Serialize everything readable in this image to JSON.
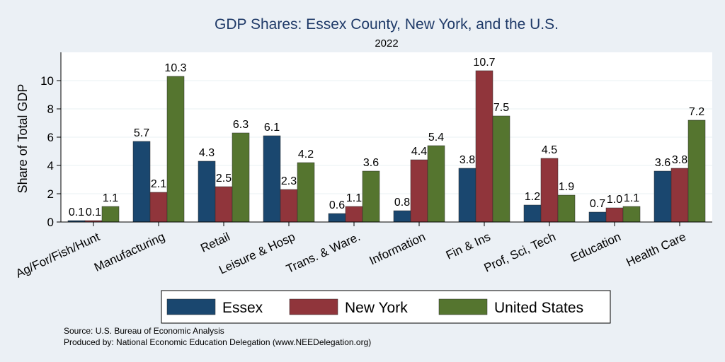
{
  "chart_data": {
    "type": "bar",
    "title": "GDP Shares: Essex County, New York, and the U.S.",
    "subtitle": "2022",
    "ylabel": "Share of Total GDP",
    "xlabel": "",
    "ylim": [
      0,
      12
    ],
    "yticks": [
      0,
      2,
      4,
      6,
      8,
      10
    ],
    "grid": true,
    "legend_position": "bottom",
    "categories": [
      "Ag/For/Fish/Hunt",
      "Manufacturing",
      "Retail",
      "Leisure & Hosp",
      "Trans. & Ware.",
      "Information",
      "Fin & Ins",
      "Prof, Sci, Tech",
      "Education",
      "Health Care"
    ],
    "series": [
      {
        "name": "Essex",
        "color": "#1a476f",
        "values": [
          0.1,
          5.7,
          4.3,
          6.1,
          0.6,
          0.8,
          3.8,
          1.2,
          0.7,
          3.6
        ],
        "labels": [
          "0.1",
          "5.7",
          "4.3",
          "6.1",
          "0.6",
          "0.8",
          "3.8",
          "1.2",
          "0.7",
          "3.6"
        ]
      },
      {
        "name": "New York",
        "color": "#90353b",
        "values": [
          0.1,
          2.1,
          2.5,
          2.3,
          1.1,
          4.4,
          10.7,
          4.5,
          1.0,
          3.8
        ],
        "labels": [
          "0.1",
          "2.1",
          "2.5",
          "2.3",
          "1.1",
          "4.4",
          "10.7",
          "4.5",
          "1.0",
          "3.8"
        ]
      },
      {
        "name": "United States",
        "color": "#55752f",
        "values": [
          1.1,
          10.3,
          6.3,
          4.2,
          3.6,
          5.4,
          7.5,
          1.9,
          1.1,
          7.2
        ],
        "labels": [
          "1.1",
          "10.3",
          "6.3",
          "4.2",
          "3.6",
          "5.4",
          "7.5",
          "1.9",
          "1.1",
          "7.2"
        ]
      }
    ]
  },
  "notes": {
    "source": "Source: U.S. Bureau of Economic Analysis",
    "produced_by": "Produced by: National Economic Education Delegation (www.NEEDelegation.org)"
  }
}
